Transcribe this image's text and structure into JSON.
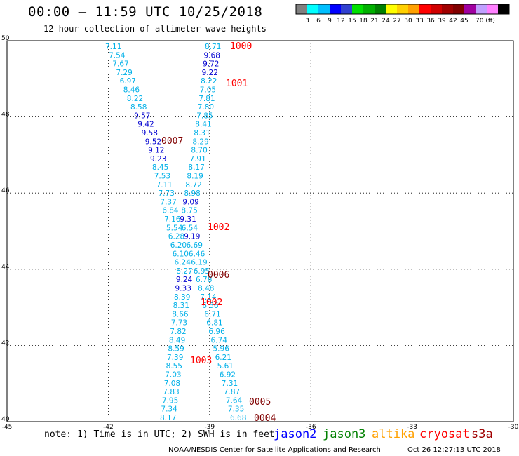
{
  "header": {
    "title": "00:00 — 11:59 UTC 10/25/2018",
    "subtitle": "12 hour collection of altimeter wave heights"
  },
  "colorbar": {
    "colors": [
      "#808080",
      "#00ffff",
      "#00bfff",
      "#0000ff",
      "#3040d0",
      "#00e000",
      "#00b000",
      "#008000",
      "#ffff00",
      "#ffd000",
      "#ffa000",
      "#ff0000",
      "#d00000",
      "#a00000",
      "#800000",
      "#a000a0",
      "#c0a0ff",
      "#ff80ff",
      "#000000"
    ],
    "labels": [
      "3",
      "6",
      "9",
      "12",
      "15",
      "18",
      "21",
      "24",
      "27",
      "30",
      "33",
      "36",
      "39",
      "42",
      "45",
      "70 (ft)"
    ]
  },
  "axes": {
    "xlim": [
      -45,
      -30
    ],
    "ylim": [
      40,
      50
    ],
    "x_ticks": [
      "-45",
      "-42",
      "-39",
      "-36",
      "-33",
      "-30"
    ],
    "y_ticks": [
      "40",
      "42",
      "44",
      "46",
      "48",
      "50"
    ]
  },
  "tracks": {
    "left": [
      "7.11",
      "7.54",
      "7.67",
      "7.29",
      "6.97",
      "8.46",
      "8.22",
      "8.58",
      "9.57",
      "9.42",
      "9.58",
      "9.52",
      "9.12",
      "9.23",
      "8.45",
      "7.53",
      "7.11",
      "7.73",
      "7.37",
      "6.84",
      "7.16",
      "5.54",
      "6.28",
      "6.20",
      "6.10",
      "6.24",
      "8.27",
      "9.24",
      "9.33",
      "8.39",
      "8.31",
      "8.66",
      "7.73",
      "7.82",
      "8.49",
      "8.59",
      "7.39",
      "8.55",
      "7.03",
      "7.08",
      "7.83",
      "7.95",
      "7.34",
      "8.17"
    ],
    "right": [
      "8.71",
      "9.68",
      "9.72",
      "9.22",
      "8.22",
      "7.05",
      "7.81",
      "7.80",
      "7.85",
      "8.41",
      "8.31",
      "8.29",
      "8.70",
      "7.91",
      "8.17",
      "8.19",
      "8.72",
      "8.98",
      "9.09",
      "8.75",
      "9.31",
      "6.54",
      "9.19",
      "6.69",
      "6.46",
      "6.19",
      "6.95",
      "6.78",
      "8.48",
      "7.14",
      "6.56",
      "6.71",
      "6.81",
      "6.96",
      "6.74",
      "5.96",
      "6.21",
      "5.61",
      "6.92",
      "7.31",
      "7.87",
      "7.64",
      "7.35",
      "6.68"
    ]
  },
  "pressure_labels": [
    {
      "text": "1000",
      "color": "#ff0000"
    },
    {
      "text": "1001",
      "color": "#ff0000"
    },
    {
      "text": "0007",
      "color": "#800000"
    },
    {
      "text": "1002",
      "color": "#ff0000"
    },
    {
      "text": "0006",
      "color": "#800000"
    },
    {
      "text": "1002",
      "color": "#ff0000"
    },
    {
      "text": "1003",
      "color": "#ff0000"
    },
    {
      "text": "0005",
      "color": "#800000"
    },
    {
      "text": "0004",
      "color": "#800000"
    }
  ],
  "note": "note: 1) Time is in UTC; 2) SWH is in feet",
  "missions": [
    {
      "name": "jason2",
      "color": "#0000ff"
    },
    {
      "name": "jason3",
      "color": "#008000"
    },
    {
      "name": "altika",
      "color": "#ffa000"
    },
    {
      "name": "cryosat",
      "color": "#ff0000"
    },
    {
      "name": "s3a",
      "color": "#a00000"
    }
  ],
  "footer": {
    "center": "NOAA/NESDIS Center for Satellite Applications and Research",
    "timestamp": "Oct 26 12:27:13 UTC 2018"
  }
}
